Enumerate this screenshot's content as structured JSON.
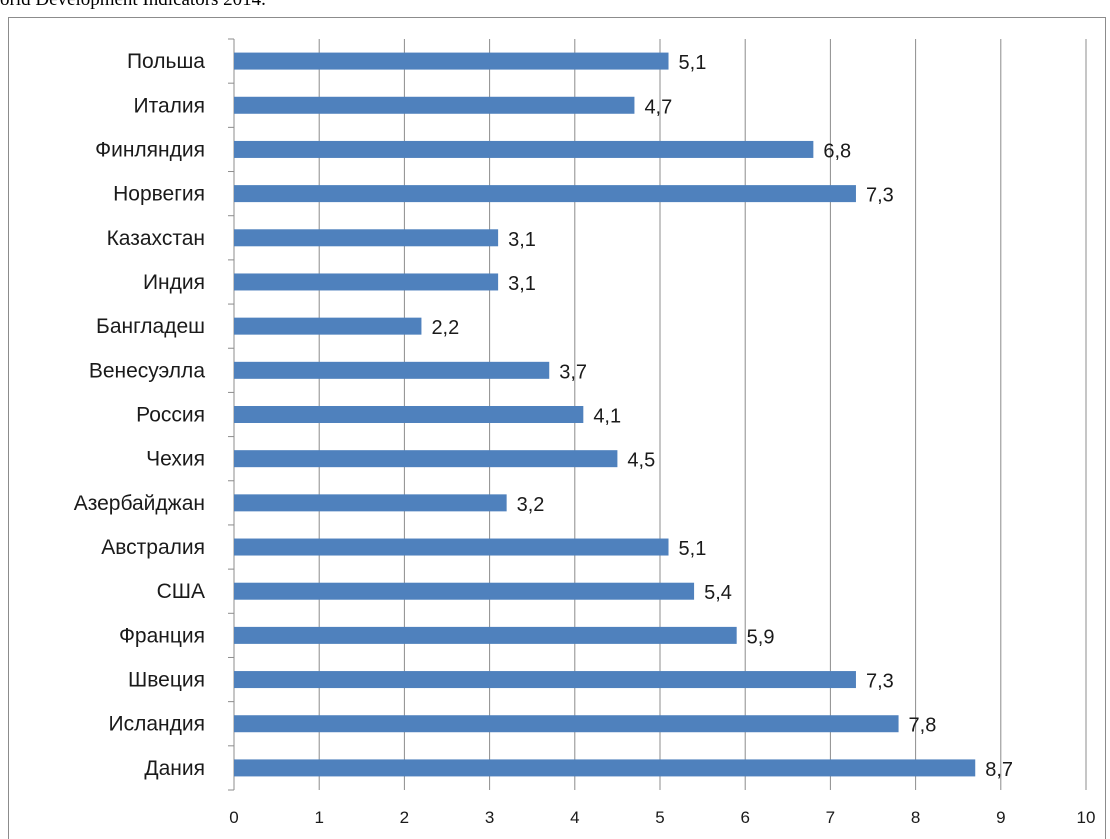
{
  "header": {
    "text": "orld Development Indicators 2014."
  },
  "chart_data": {
    "type": "bar",
    "orientation": "horizontal",
    "categories": [
      "Польша",
      "Италия",
      "Финляндия",
      "Норвегия",
      "Казахстан",
      "Индия",
      "Бангладеш",
      "Венесуэлла",
      "Россия",
      "Чехия",
      "Азербайджан",
      "Австралия",
      "США",
      "Франция",
      "Швеция",
      "Исландия",
      "Дания"
    ],
    "values": [
      5.1,
      4.7,
      6.8,
      7.3,
      3.1,
      3.1,
      2.2,
      3.7,
      4.1,
      4.5,
      3.2,
      5.1,
      5.4,
      5.9,
      7.3,
      7.8,
      8.7
    ],
    "value_labels": [
      "5,1",
      "4,7",
      "6,8",
      "7,3",
      "3,1",
      "3,1",
      "2,2",
      "3,7",
      "4,1",
      "4,5",
      "3,2",
      "5,1",
      "5,4",
      "5,9",
      "7,3",
      "7,8",
      "8,7"
    ],
    "xlim": [
      0,
      10
    ],
    "x_ticks": [
      "0",
      "1",
      "2",
      "3",
      "4",
      "5",
      "6",
      "7",
      "8",
      "9",
      "10"
    ],
    "grid": "vertical",
    "bar_color": "#4f81bd",
    "grid_color": "#8c8c8c"
  }
}
